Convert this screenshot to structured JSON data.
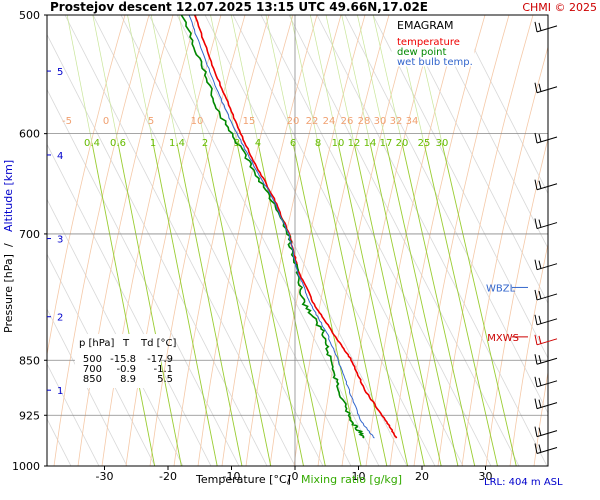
{
  "header": {
    "title": "Prostejov   descent   12.07.2025 13:15 UTC  49.66N,17.02E",
    "credit": "CHMI © 2025"
  },
  "legend": {
    "title": "EMAGRAM",
    "items": [
      {
        "label": "temperature",
        "color": "#ee0000"
      },
      {
        "label": "dew point",
        "color": "#008800"
      },
      {
        "label": "wet bulb temp.",
        "color": "#3366cc"
      }
    ]
  },
  "table": {
    "headers": [
      "p [hPa]",
      "T",
      "Td [°C]"
    ],
    "rows": [
      [
        "500",
        "-15.8",
        "-17.9"
      ],
      [
        "700",
        "-0.9",
        "-1.1"
      ],
      [
        "850",
        "8.9",
        "5.5"
      ]
    ]
  },
  "levels": [
    {
      "label": "WBZL",
      "pressure": 760,
      "color": "#3366cc"
    },
    {
      "label": "MXWS",
      "pressure": 820,
      "color": "#cc0000"
    }
  ],
  "footer": {
    "lrl": "LRL: 404 m ASL",
    "xlabel_temp": "Temperature [°C]",
    "xlabel_sep": "/",
    "xlabel_mr": "Mixing ratio [g/kg]",
    "ylabel_p": "Pressure [hPa]",
    "ylabel_sep": "/",
    "ylabel_alt": "Altitude [km]"
  },
  "chart_data": {
    "type": "line",
    "x_axis": {
      "label": "Temperature [°C]",
      "range": [
        -40,
        40
      ],
      "ticks": [
        -30,
        -20,
        -10,
        0,
        10,
        20,
        30
      ]
    },
    "y_axis": {
      "label": "Pressure [hPa]",
      "scale": "log",
      "range": [
        1000,
        500
      ],
      "ticks": [
        500,
        600,
        700,
        850,
        925,
        1000
      ]
    },
    "altitude_ticks_km": [
      {
        "label": "1",
        "pressure": 890
      },
      {
        "label": "2",
        "pressure": 795
      },
      {
        "label": "3",
        "pressure": 705
      },
      {
        "label": "4",
        "pressure": 620
      },
      {
        "label": "5",
        "pressure": 545
      }
    ],
    "mixing_ratio_labels": [
      "0.4",
      "0.6",
      "1",
      "1.4",
      "2",
      "3",
      "4",
      "6",
      "8",
      "10",
      "12",
      "14",
      "17",
      "20",
      "25",
      "30"
    ],
    "theta_labels": [
      "-5",
      "0",
      "5",
      "10",
      "15",
      "20",
      "22",
      "24",
      "26",
      "28",
      "30",
      "32",
      "34"
    ],
    "series": [
      {
        "name": "temperature",
        "color": "#ee0000",
        "points": [
          [
            16.0,
            958
          ],
          [
            14.5,
            935
          ],
          [
            11.0,
            890
          ],
          [
            8.9,
            850
          ],
          [
            6.0,
            815
          ],
          [
            3.0,
            780
          ],
          [
            0.5,
            740
          ],
          [
            -0.9,
            700
          ],
          [
            -3.5,
            660
          ],
          [
            -7.0,
            620
          ],
          [
            -10.0,
            580
          ],
          [
            -13.0,
            540
          ],
          [
            -15.8,
            500
          ]
        ]
      },
      {
        "name": "dew point",
        "color": "#008800",
        "points": [
          [
            11.0,
            958
          ],
          [
            9.0,
            935
          ],
          [
            7.0,
            890
          ],
          [
            5.5,
            850
          ],
          [
            4.5,
            815
          ],
          [
            1.5,
            780
          ],
          [
            0.2,
            740
          ],
          [
            -1.1,
            700
          ],
          [
            -4.0,
            660
          ],
          [
            -8.0,
            620
          ],
          [
            -12.0,
            580
          ],
          [
            -14.5,
            540
          ],
          [
            -17.9,
            500
          ]
        ]
      },
      {
        "name": "wet bulb temp.",
        "color": "#3366cc",
        "points": [
          [
            12.5,
            958
          ],
          [
            10.5,
            935
          ],
          [
            8.5,
            890
          ],
          [
            6.8,
            850
          ],
          [
            5.0,
            815
          ],
          [
            2.5,
            780
          ],
          [
            0.3,
            740
          ],
          [
            -1.0,
            700
          ],
          [
            -3.7,
            660
          ],
          [
            -7.4,
            620
          ],
          [
            -10.8,
            580
          ],
          [
            -13.8,
            540
          ],
          [
            -16.7,
            500
          ]
        ]
      }
    ],
    "wind_barbs_pressure": [
      510,
      560,
      605,
      650,
      690,
      735,
      770,
      800,
      825,
      850,
      880,
      910,
      950,
      975
    ]
  }
}
